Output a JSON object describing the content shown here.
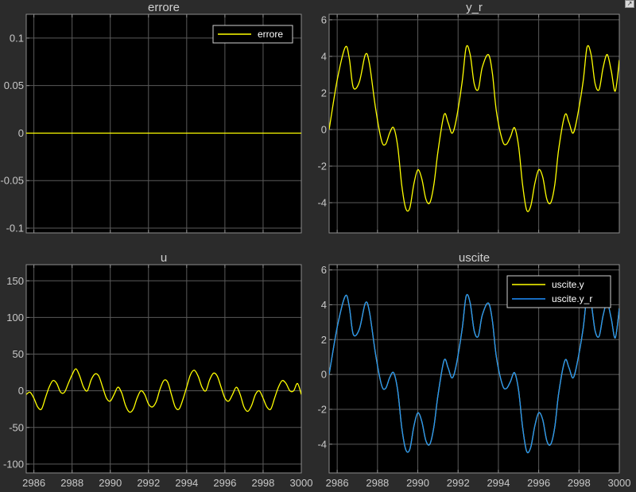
{
  "theme": {
    "figure_bg": "#2b2b2b",
    "axes_bg": "#000000",
    "axes_border": "#8c8c8c",
    "grid_color": "#5a5a5a",
    "text_color": "#c8c8c8",
    "title_color": "#d0d0d0",
    "legend_bg": "#000000",
    "legend_border": "#cfcfcf",
    "legend_text": "#ffffff",
    "yellow": "#ffff00",
    "blue": "#1f8fff"
  },
  "undock_icon": "undock-arrow-icon",
  "chart_data": [
    {
      "id": "errore",
      "type": "line",
      "title": "errore",
      "xlabel": "",
      "ylabel": "",
      "xlim": [
        2985.6,
        3000
      ],
      "ylim": [
        -0.105,
        0.125
      ],
      "xticks": [
        2986,
        2988,
        2990,
        2992,
        2994,
        2996,
        2998,
        3000
      ],
      "show_x_tick_labels": false,
      "yticks": [
        -0.1,
        -0.05,
        0,
        0.05,
        0.1
      ],
      "ytick_labels": [
        "-0.1",
        "-0.05",
        "0",
        "0.05",
        "0.1"
      ],
      "grid": true,
      "legend": {
        "location": "top-right",
        "entries": [
          "errore"
        ]
      },
      "series": [
        {
          "name": "errore",
          "color": "#ffff00",
          "x": [
            2985.6,
            3000
          ],
          "y": [
            0,
            0
          ]
        }
      ]
    },
    {
      "id": "y_r",
      "type": "line",
      "title": "y_r",
      "xlabel": "",
      "ylabel": "",
      "xlim": [
        2985.6,
        3000
      ],
      "ylim": [
        -5.65,
        6.3
      ],
      "xticks": [
        2986,
        2988,
        2990,
        2992,
        2994,
        2996,
        2998,
        3000
      ],
      "show_x_tick_labels": false,
      "yticks": [
        -4,
        -2,
        0,
        2,
        4,
        6
      ],
      "ytick_labels": [
        "-4",
        "-2",
        "0",
        "2",
        "4",
        "6"
      ],
      "grid": true,
      "legend": null,
      "series": [
        {
          "name": "",
          "color": "#ffff00",
          "x": [
            2985.6,
            2986.0,
            2986.4,
            2986.6,
            2986.8,
            2987.1,
            2987.4,
            2987.6,
            2987.9,
            2988.2,
            2988.4,
            2988.6,
            2988.8,
            2989.0,
            2989.2,
            2989.4,
            2989.6,
            2989.8,
            2990.0,
            2990.2,
            2990.4,
            2990.6,
            2990.8,
            2991.0,
            2991.3,
            2991.5,
            2991.7,
            2991.9,
            2992.2,
            2992.4,
            2992.6,
            2992.8,
            2993.0,
            2993.2,
            2993.5,
            2993.7,
            2993.9,
            2994.2,
            2994.4,
            2994.6,
            2994.8,
            2995.0,
            2995.2,
            2995.4,
            2995.6,
            2995.8,
            2996.0,
            2996.2,
            2996.4,
            2996.6,
            2996.8,
            2997.0,
            2997.3,
            2997.5,
            2997.7,
            2997.9,
            2998.2,
            2998.4,
            2998.6,
            2998.8,
            2999.0,
            2999.2,
            2999.4,
            2999.6,
            2999.8,
            3000.0
          ],
          "y": [
            0,
            2.7,
            4.5,
            3.9,
            2.3,
            2.6,
            4.1,
            3.6,
            1.2,
            -0.6,
            -0.8,
            -0.2,
            0.1,
            -0.9,
            -3.0,
            -4.3,
            -4.3,
            -3.0,
            -2.2,
            -2.7,
            -3.8,
            -4.0,
            -3.0,
            -1.2,
            0.8,
            0.4,
            -0.2,
            0.5,
            2.6,
            4.5,
            4.1,
            2.5,
            2.2,
            3.4,
            4.1,
            3.1,
            1.0,
            -0.6,
            -0.8,
            -0.4,
            0.1,
            -0.9,
            -3.0,
            -4.4,
            -4.2,
            -3.0,
            -2.2,
            -2.6,
            -3.8,
            -4.0,
            -3.0,
            -1.0,
            0.8,
            0.4,
            -0.2,
            0.6,
            2.6,
            4.5,
            4.1,
            2.5,
            2.2,
            3.4,
            4.1,
            3.2,
            2.1,
            3.8
          ]
        }
      ]
    },
    {
      "id": "u",
      "type": "line",
      "title": "u",
      "xlabel": "",
      "ylabel": "",
      "xlim": [
        2985.6,
        3000
      ],
      "ylim": [
        -112,
        172
      ],
      "xticks": [
        2986,
        2988,
        2990,
        2992,
        2994,
        2996,
        2998,
        3000
      ],
      "xtick_labels": [
        "2986",
        "2988",
        "2990",
        "2992",
        "2994",
        "2996",
        "2998",
        "3000"
      ],
      "show_x_tick_labels": true,
      "yticks": [
        -100,
        -50,
        0,
        50,
        100,
        150
      ],
      "ytick_labels": [
        "-100",
        "-50",
        "0",
        "50",
        "100",
        "150"
      ],
      "grid": true,
      "legend": null,
      "series": [
        {
          "name": "",
          "color": "#ffff00",
          "x": [
            2985.6,
            2985.8,
            2986.0,
            2986.2,
            2986.4,
            2986.6,
            2986.8,
            2987.0,
            2987.2,
            2987.4,
            2987.6,
            2987.8,
            2988.0,
            2988.2,
            2988.4,
            2988.6,
            2988.8,
            2989.0,
            2989.2,
            2989.4,
            2989.6,
            2989.8,
            2990.0,
            2990.2,
            2990.4,
            2990.6,
            2990.8,
            2991.0,
            2991.2,
            2991.4,
            2991.6,
            2991.8,
            2992.0,
            2992.2,
            2992.4,
            2992.6,
            2992.8,
            2993.0,
            2993.2,
            2993.4,
            2993.6,
            2993.8,
            2994.0,
            2994.2,
            2994.4,
            2994.6,
            2994.8,
            2995.0,
            2995.2,
            2995.4,
            2995.6,
            2995.8,
            2996.0,
            2996.2,
            2996.4,
            2996.6,
            2996.8,
            2997.0,
            2997.2,
            2997.4,
            2997.6,
            2997.8,
            2998.0,
            2998.2,
            2998.4,
            2998.6,
            2998.8,
            2999.0,
            2999.2,
            2999.4,
            2999.6,
            2999.8,
            3000.0
          ],
          "y": [
            -5,
            -2,
            -10,
            -22,
            -25,
            -10,
            5,
            14,
            10,
            -2,
            -2,
            10,
            22,
            30,
            20,
            5,
            0,
            15,
            23,
            20,
            5,
            -10,
            -14,
            -5,
            5,
            -3,
            -20,
            -29,
            -25,
            -10,
            0,
            -5,
            -18,
            -22,
            -15,
            2,
            14,
            12,
            -5,
            -22,
            -25,
            -12,
            5,
            22,
            28,
            20,
            5,
            0,
            15,
            24,
            20,
            5,
            -10,
            -14,
            -5,
            5,
            -5,
            -22,
            -28,
            -20,
            -5,
            0,
            -10,
            -22,
            -25,
            -10,
            5,
            14,
            10,
            0,
            0,
            10,
            -5
          ]
        }
      ]
    },
    {
      "id": "uscite",
      "type": "line",
      "title": "uscite",
      "xlabel": "",
      "ylabel": "",
      "xlim": [
        2985.6,
        3000
      ],
      "ylim": [
        -5.65,
        6.3
      ],
      "xticks": [
        2986,
        2988,
        2990,
        2992,
        2994,
        2996,
        2998,
        3000
      ],
      "xtick_labels": [
        "2986",
        "2988",
        "2990",
        "2992",
        "2994",
        "2996",
        "2998",
        "3000"
      ],
      "show_x_tick_labels": true,
      "yticks": [
        -4,
        -2,
        0,
        2,
        4,
        6
      ],
      "ytick_labels": [
        "-4",
        "-2",
        "0",
        "2",
        "4",
        "6"
      ],
      "grid": true,
      "legend": {
        "location": "top-right",
        "entries": [
          "uscite.y",
          "uscite.y_r"
        ]
      },
      "series": [
        {
          "name": "uscite.y",
          "color": "#ffff00",
          "x": [
            2985.6,
            2986.0,
            2986.4,
            2986.6,
            2986.8,
            2987.1,
            2987.4,
            2987.6,
            2987.9,
            2988.2,
            2988.4,
            2988.6,
            2988.8,
            2989.0,
            2989.2,
            2989.4,
            2989.6,
            2989.8,
            2990.0,
            2990.2,
            2990.4,
            2990.6,
            2990.8,
            2991.0,
            2991.3,
            2991.5,
            2991.7,
            2991.9,
            2992.2,
            2992.4,
            2992.6,
            2992.8,
            2993.0,
            2993.2,
            2993.5,
            2993.7,
            2993.9,
            2994.2,
            2994.4,
            2994.6,
            2994.8,
            2995.0,
            2995.2,
            2995.4,
            2995.6,
            2995.8,
            2996.0,
            2996.2,
            2996.4,
            2996.6,
            2996.8,
            2997.0,
            2997.3,
            2997.5,
            2997.7,
            2997.9,
            2998.2,
            2998.4,
            2998.6,
            2998.8,
            2999.0,
            2999.2,
            2999.4,
            2999.6,
            2999.8,
            3000.0
          ],
          "y": [
            0,
            2.7,
            4.5,
            3.9,
            2.3,
            2.6,
            4.1,
            3.6,
            1.2,
            -0.6,
            -0.8,
            -0.2,
            0.1,
            -0.9,
            -3.0,
            -4.3,
            -4.3,
            -3.0,
            -2.2,
            -2.7,
            -3.8,
            -4.0,
            -3.0,
            -1.2,
            0.8,
            0.4,
            -0.2,
            0.5,
            2.6,
            4.5,
            4.1,
            2.5,
            2.2,
            3.4,
            4.1,
            3.1,
            1.0,
            -0.6,
            -0.8,
            -0.4,
            0.1,
            -0.9,
            -3.0,
            -4.4,
            -4.2,
            -3.0,
            -2.2,
            -2.6,
            -3.8,
            -4.0,
            -3.0,
            -1.0,
            0.8,
            0.4,
            -0.2,
            0.6,
            2.6,
            4.5,
            4.1,
            2.5,
            2.2,
            3.4,
            4.1,
            3.2,
            2.1,
            3.8
          ]
        },
        {
          "name": "uscite.y_r",
          "color": "#1f8fff",
          "x": [
            2985.6,
            2986.0,
            2986.4,
            2986.6,
            2986.8,
            2987.1,
            2987.4,
            2987.6,
            2987.9,
            2988.2,
            2988.4,
            2988.6,
            2988.8,
            2989.0,
            2989.2,
            2989.4,
            2989.6,
            2989.8,
            2990.0,
            2990.2,
            2990.4,
            2990.6,
            2990.8,
            2991.0,
            2991.3,
            2991.5,
            2991.7,
            2991.9,
            2992.2,
            2992.4,
            2992.6,
            2992.8,
            2993.0,
            2993.2,
            2993.5,
            2993.7,
            2993.9,
            2994.2,
            2994.4,
            2994.6,
            2994.8,
            2995.0,
            2995.2,
            2995.4,
            2995.6,
            2995.8,
            2996.0,
            2996.2,
            2996.4,
            2996.6,
            2996.8,
            2997.0,
            2997.3,
            2997.5,
            2997.7,
            2997.9,
            2998.2,
            2998.4,
            2998.6,
            2998.8,
            2999.0,
            2999.2,
            2999.4,
            2999.6,
            2999.8,
            3000.0
          ],
          "y": [
            0,
            2.7,
            4.5,
            3.9,
            2.3,
            2.6,
            4.1,
            3.6,
            1.2,
            -0.6,
            -0.8,
            -0.2,
            0.1,
            -0.9,
            -3.0,
            -4.3,
            -4.3,
            -3.0,
            -2.2,
            -2.7,
            -3.8,
            -4.0,
            -3.0,
            -1.2,
            0.8,
            0.4,
            -0.2,
            0.5,
            2.6,
            4.5,
            4.1,
            2.5,
            2.2,
            3.4,
            4.1,
            3.1,
            1.0,
            -0.6,
            -0.8,
            -0.4,
            0.1,
            -0.9,
            -3.0,
            -4.4,
            -4.2,
            -3.0,
            -2.2,
            -2.6,
            -3.8,
            -4.0,
            -3.0,
            -1.0,
            0.8,
            0.4,
            -0.2,
            0.6,
            2.6,
            4.5,
            4.1,
            2.5,
            2.2,
            3.4,
            4.1,
            3.2,
            2.1,
            3.8
          ]
        }
      ]
    }
  ]
}
